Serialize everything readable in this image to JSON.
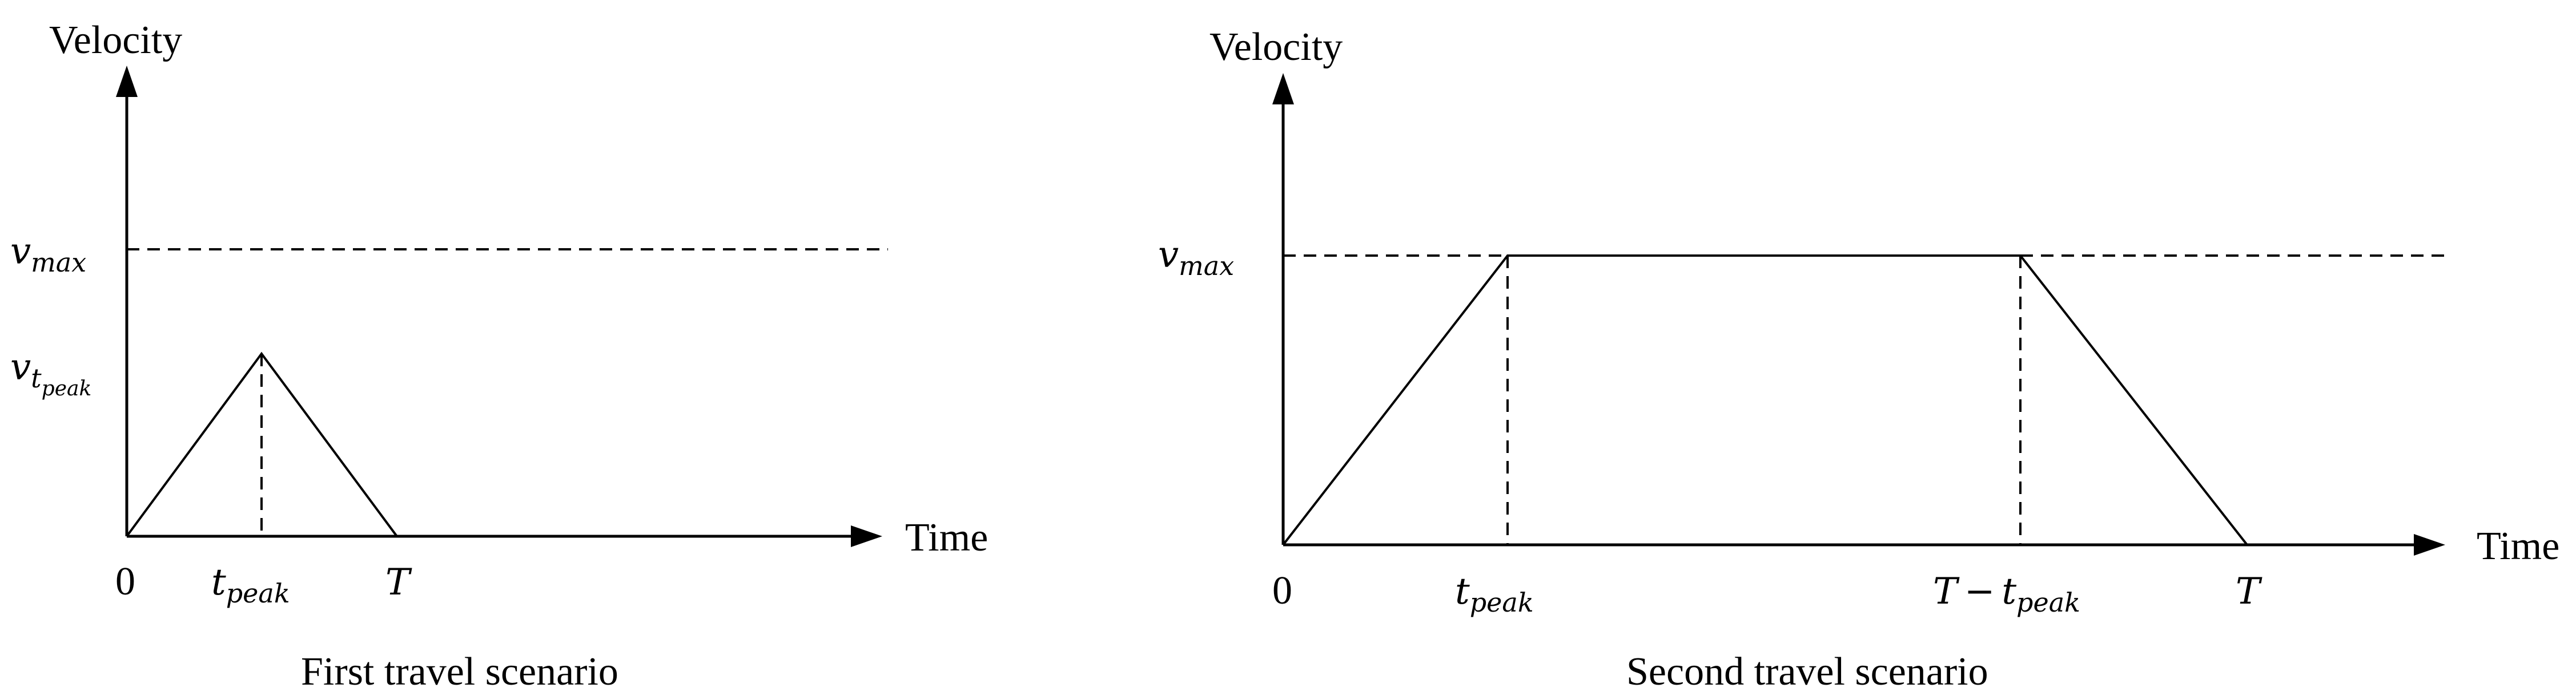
{
  "panels": [
    {
      "caption": "First travel scenario",
      "y_axis_label": "Velocity",
      "x_axis_label": "Time",
      "origin_label": "0",
      "v_max": {
        "base": "v",
        "sub": "max"
      },
      "v_tpeak": {
        "base": "v",
        "sub": "t",
        "subsub": "peak"
      },
      "t_peak": {
        "base": "t",
        "sub": "peak"
      },
      "T": "T"
    },
    {
      "caption": "Second travel scenario",
      "y_axis_label": "Velocity",
      "x_axis_label": "Time",
      "origin_label": "0",
      "v_max": {
        "base": "v",
        "sub": "max"
      },
      "t_peak": {
        "base": "t",
        "sub": "peak"
      },
      "T_minus_tpeak": {
        "T": "T",
        "op": "−",
        "base": "t",
        "sub": "peak"
      },
      "T": "T"
    }
  ]
}
